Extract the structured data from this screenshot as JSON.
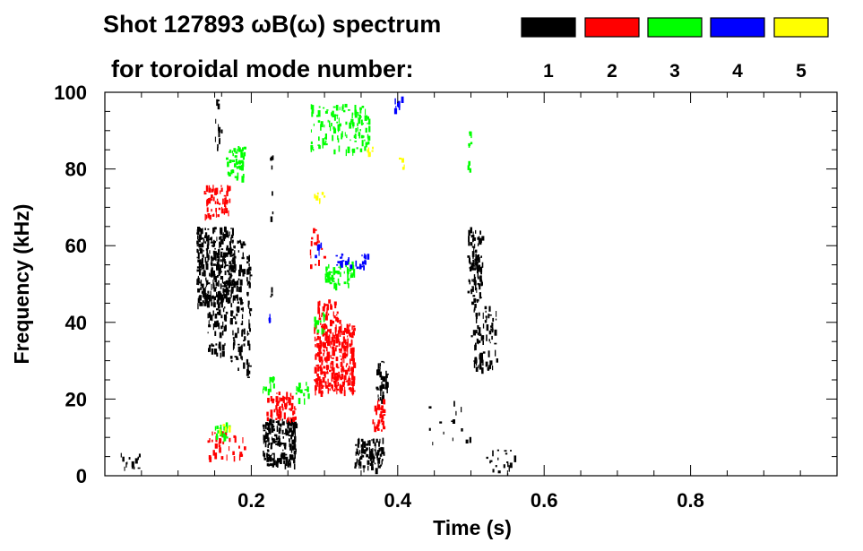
{
  "chart_data": {
    "type": "heatmap",
    "title_line1": "Shot 127893 ωB(ω) spectrum",
    "title_line2": "for toroidal mode number:",
    "xlabel": "Time (s)",
    "ylabel": "Frequency (kHz)",
    "xlim": [
      0.0,
      1.0
    ],
    "ylim": [
      0,
      100
    ],
    "x_ticks": [
      0.2,
      0.4,
      0.6,
      0.8
    ],
    "x_tick_labels": [
      "0.2",
      "0.4",
      "0.6",
      "0.8"
    ],
    "y_ticks": [
      0,
      20,
      40,
      60,
      80,
      100
    ],
    "y_tick_labels": [
      "0",
      "20",
      "40",
      "60",
      "80",
      "100"
    ],
    "legend": [
      {
        "mode": "1",
        "color": "#000000"
      },
      {
        "mode": "2",
        "color": "#ff0000"
      },
      {
        "mode": "3",
        "color": "#00ff00"
      },
      {
        "mode": "4",
        "color": "#0000ff"
      },
      {
        "mode": "5",
        "color": "#ffff00"
      }
    ],
    "series": [
      {
        "name": "n=1",
        "mode": "1",
        "color": "#000000",
        "regions": [
          {
            "t": [
              0.125,
              0.175
            ],
            "f": [
              45,
              65
            ],
            "density": 0.85
          },
          {
            "t": [
              0.14,
              0.165
            ],
            "f": [
              32,
              45
            ],
            "density": 0.4
          },
          {
            "t": [
              0.15,
              0.16
            ],
            "f": [
              85,
              100
            ],
            "density": 0.25
          },
          {
            "t": [
              0.17,
              0.19
            ],
            "f": [
              28,
              62
            ],
            "density": 0.4
          },
          {
            "t": [
              0.193,
              0.198
            ],
            "f": [
              25,
              58
            ],
            "density": 0.7
          },
          {
            "t": [
              0.215,
              0.26
            ],
            "f": [
              3,
              15
            ],
            "density": 0.85
          },
          {
            "t": [
              0.225,
              0.23
            ],
            "f": [
              45,
              90
            ],
            "density": 0.12
          },
          {
            "t": [
              0.34,
              0.38
            ],
            "f": [
              2,
              10
            ],
            "density": 0.7
          },
          {
            "t": [
              0.37,
              0.385
            ],
            "f": [
              20,
              30
            ],
            "density": 0.7
          },
          {
            "t": [
              0.495,
              0.515
            ],
            "f": [
              45,
              65
            ],
            "density": 0.6
          },
          {
            "t": [
              0.5,
              0.535
            ],
            "f": [
              28,
              45
            ],
            "density": 0.35
          },
          {
            "t": [
              0.02,
              0.05
            ],
            "f": [
              2,
              6
            ],
            "density": 0.3
          },
          {
            "t": [
              0.52,
              0.56
            ],
            "f": [
              0,
              8
            ],
            "density": 0.15
          },
          {
            "t": [
              0.44,
              0.5
            ],
            "f": [
              8,
              20
            ],
            "density": 0.05
          }
        ]
      },
      {
        "name": "n=2",
        "mode": "2",
        "color": "#ff0000",
        "regions": [
          {
            "t": [
              0.135,
              0.17
            ],
            "f": [
              68,
              76
            ],
            "density": 0.6
          },
          {
            "t": [
              0.285,
              0.34
            ],
            "f": [
              22,
              40
            ],
            "density": 0.9
          },
          {
            "t": [
              0.29,
              0.32
            ],
            "f": [
              40,
              46
            ],
            "density": 0.5
          },
          {
            "t": [
              0.22,
              0.26
            ],
            "f": [
              15,
              22
            ],
            "density": 0.6
          },
          {
            "t": [
              0.365,
              0.38
            ],
            "f": [
              12,
              20
            ],
            "density": 0.7
          },
          {
            "t": [
              0.14,
              0.19
            ],
            "f": [
              5,
              12
            ],
            "density": 0.25
          },
          {
            "t": [
              0.28,
              0.3
            ],
            "f": [
              55,
              65
            ],
            "density": 0.2
          }
        ]
      },
      {
        "name": "n=3",
        "mode": "3",
        "color": "#00ff00",
        "regions": [
          {
            "t": [
              0.165,
              0.19
            ],
            "f": [
              78,
              86
            ],
            "density": 0.6
          },
          {
            "t": [
              0.28,
              0.36
            ],
            "f": [
              85,
              97
            ],
            "density": 0.35
          },
          {
            "t": [
              0.3,
              0.34
            ],
            "f": [
              50,
              56
            ],
            "density": 0.6
          },
          {
            "t": [
              0.285,
              0.3
            ],
            "f": [
              38,
              43
            ],
            "density": 0.5
          },
          {
            "t": [
              0.15,
              0.17
            ],
            "f": [
              10,
              14
            ],
            "density": 0.5
          },
          {
            "t": [
              0.215,
              0.23
            ],
            "f": [
              22,
              26
            ],
            "density": 0.5
          },
          {
            "t": [
              0.495,
              0.5
            ],
            "f": [
              80,
              90
            ],
            "density": 0.5
          },
          {
            "t": [
              0.26,
              0.28
            ],
            "f": [
              20,
              26
            ],
            "density": 0.3
          }
        ]
      },
      {
        "name": "n=4",
        "mode": "4",
        "color": "#0000ff",
        "regions": [
          {
            "t": [
              0.315,
              0.36
            ],
            "f": [
              54,
              58
            ],
            "density": 0.45
          },
          {
            "t": [
              0.395,
              0.405
            ],
            "f": [
              92,
              99
            ],
            "density": 0.3
          },
          {
            "t": [
              0.285,
              0.295
            ],
            "f": [
              57,
              61
            ],
            "density": 0.3
          },
          {
            "t": [
              0.22,
              0.225
            ],
            "f": [
              40,
              43
            ],
            "density": 0.5
          }
        ]
      },
      {
        "name": "n=5",
        "mode": "5",
        "color": "#ffff00",
        "regions": [
          {
            "t": [
              0.355,
              0.365
            ],
            "f": [
              84,
              87
            ],
            "density": 0.5
          },
          {
            "t": [
              0.285,
              0.3
            ],
            "f": [
              72,
              75
            ],
            "density": 0.4
          },
          {
            "t": [
              0.4,
              0.41
            ],
            "f": [
              80,
              83
            ],
            "density": 0.3
          },
          {
            "t": [
              0.155,
              0.17
            ],
            "f": [
              12,
              15
            ],
            "density": 0.3
          }
        ]
      }
    ]
  }
}
